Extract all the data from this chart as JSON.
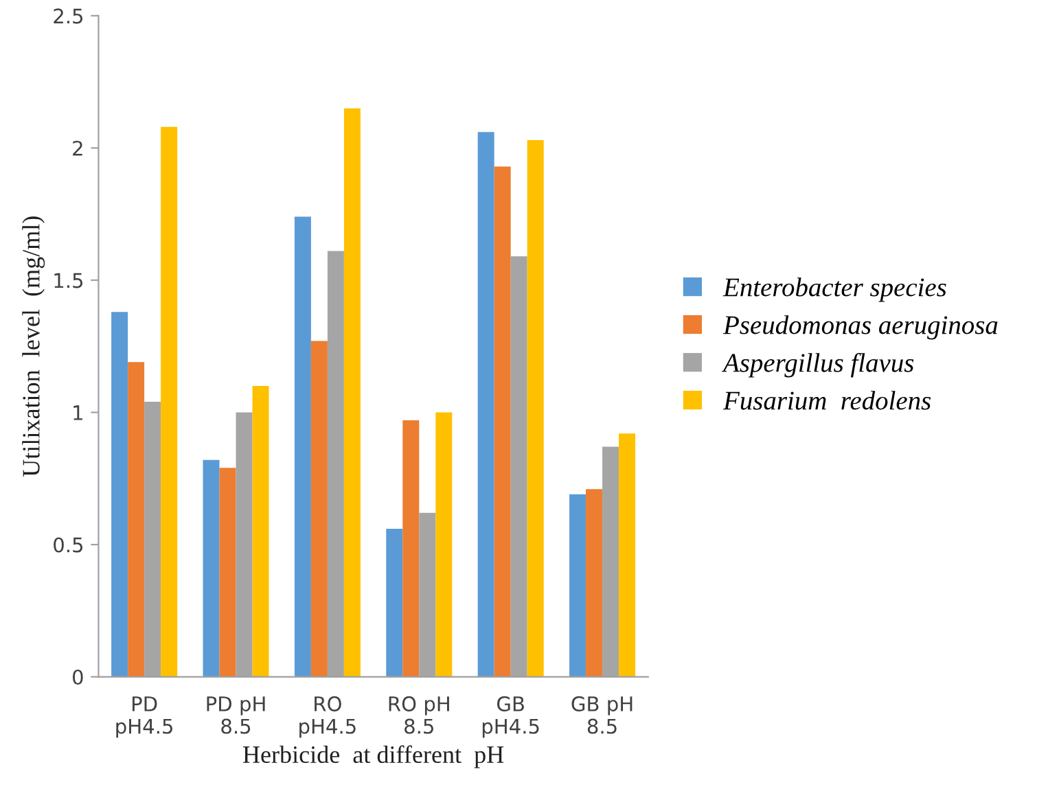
{
  "chart_data": {
    "type": "bar",
    "xlabel": "Herbicide  at different  pH",
    "ylabel": "Utilixation  level  (mg/ml)",
    "categories": [
      "PD\npH4.5",
      "PD pH\n8.5",
      "RO\npH4.5",
      "RO pH\n8.5",
      "GB\npH4.5",
      "GB pH\n8.5"
    ],
    "series": [
      {
        "name": "Enterobacter species",
        "color": "#5b9bd5",
        "values": [
          1.38,
          0.82,
          1.74,
          0.56,
          2.06,
          0.69
        ]
      },
      {
        "name": "Pseudomonas aeruginosa",
        "color": "#ed7d31",
        "values": [
          1.19,
          0.79,
          1.27,
          0.97,
          1.93,
          0.71
        ]
      },
      {
        "name": "Aspergillus flavus",
        "color": "#a5a5a5",
        "values": [
          1.04,
          1.0,
          1.61,
          0.62,
          1.59,
          0.87
        ]
      },
      {
        "name": "Fusarium  redolens",
        "color": "#ffc000",
        "values": [
          2.08,
          1.1,
          2.15,
          1.0,
          2.03,
          0.92
        ]
      }
    ],
    "ylim": [
      0,
      2.5
    ],
    "yticks": [
      0,
      0.5,
      1,
      1.5,
      2,
      2.5
    ],
    "grid": false,
    "legend": "right"
  }
}
